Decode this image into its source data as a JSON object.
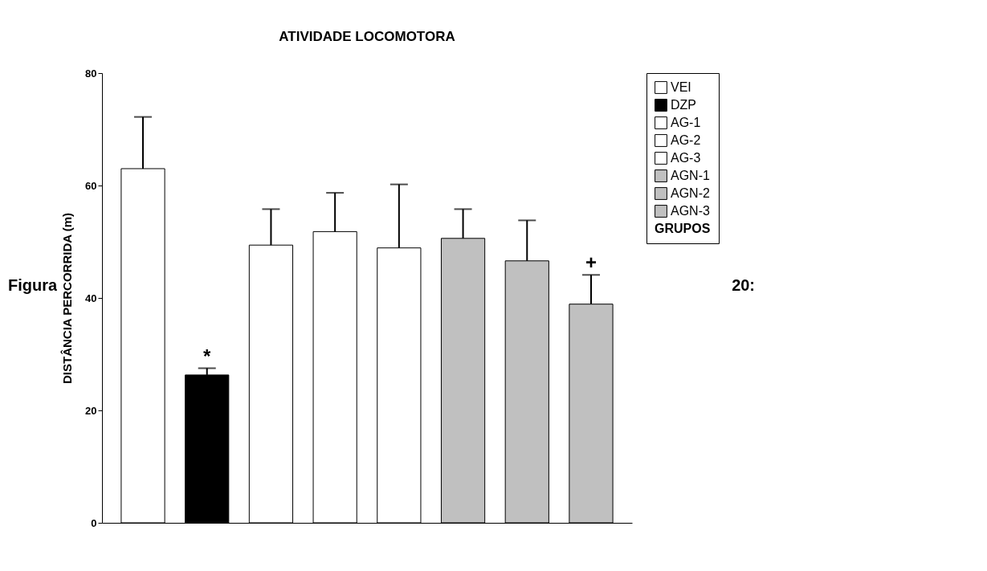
{
  "chart_data": {
    "type": "bar",
    "title": "ATIVIDADE LOCOMOTORA",
    "ylabel": "DISTÂNCIA PERCORRIDA (m)",
    "legend_title": "GRUPOS",
    "categories": [
      null,
      null,
      null,
      null,
      null,
      null,
      null,
      null
    ],
    "series": [
      {
        "name": "VEI",
        "color": "#ffffff",
        "values": [
          63,
          null,
          null,
          null,
          null,
          null,
          null,
          null
        ],
        "errors": [
          [
            63,
            72.2
          ],
          null,
          null,
          null,
          null,
          null,
          null,
          null
        ]
      },
      {
        "name": "DZP",
        "color": "#000000",
        "values": [
          null,
          26.3,
          null,
          null,
          null,
          null,
          null,
          null
        ],
        "errors": [
          null,
          [
            26.3,
            27.5
          ],
          null,
          null,
          null,
          null,
          null,
          null
        ],
        "value_labels": [
          null,
          "*",
          null,
          null,
          null,
          null,
          null,
          null
        ]
      },
      {
        "name": "AG-1",
        "color": "#ffffff",
        "values": [
          null,
          null,
          49.4,
          null,
          null,
          null,
          null,
          null
        ],
        "errors": [
          null,
          null,
          [
            49.4,
            55.8
          ],
          null,
          null,
          null,
          null,
          null
        ]
      },
      {
        "name": "AG-2",
        "color": "#ffffff",
        "values": [
          null,
          null,
          null,
          51.8,
          null,
          null,
          null,
          null
        ],
        "errors": [
          null,
          null,
          null,
          [
            51.8,
            58.7
          ],
          null,
          null,
          null,
          null
        ]
      },
      {
        "name": "AG-3",
        "color": "#ffffff",
        "values": [
          null,
          null,
          null,
          null,
          48.9,
          null,
          null,
          null
        ],
        "errors": [
          null,
          null,
          null,
          null,
          [
            48.9,
            60.2
          ],
          null,
          null,
          null
        ]
      },
      {
        "name": "AGN-1",
        "color": "#c0c0c0",
        "values": [
          null,
          null,
          null,
          null,
          null,
          50.6,
          null,
          null
        ],
        "errors": [
          null,
          null,
          null,
          null,
          null,
          [
            50.6,
            55.8
          ],
          null,
          null
        ]
      },
      {
        "name": "AGN-2",
        "color": "#c0c0c0",
        "values": [
          null,
          null,
          null,
          null,
          null,
          null,
          46.6,
          null
        ],
        "errors": [
          null,
          null,
          null,
          null,
          null,
          null,
          [
            46.6,
            53.8
          ],
          null
        ]
      },
      {
        "name": "AGN-3",
        "color": "#c0c0c0",
        "values": [
          null,
          null,
          null,
          null,
          null,
          null,
          null,
          38.9
        ],
        "errors": [
          null,
          null,
          null,
          null,
          null,
          null,
          null,
          [
            38.9,
            44.1
          ]
        ],
        "value_labels": [
          null,
          null,
          null,
          null,
          null,
          null,
          null,
          "+"
        ]
      }
    ],
    "ylim": [
      0,
      80
    ],
    "yticks": [
      0,
      20,
      40,
      60,
      80
    ],
    "grid": false,
    "legend": "top right",
    "tick_labels": "y",
    "annotations": [
      "Figura",
      "20:"
    ]
  }
}
